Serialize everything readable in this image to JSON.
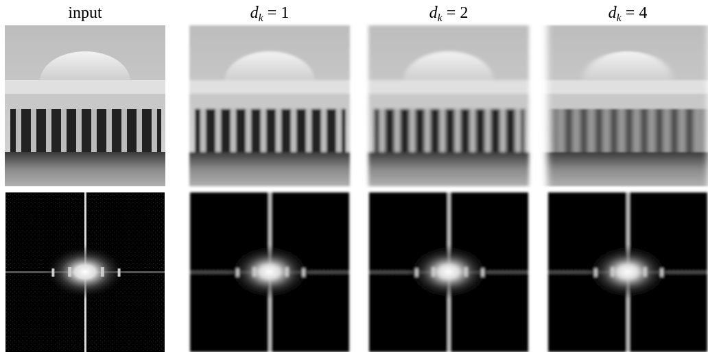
{
  "figure": {
    "columns": [
      {
        "label": "input"
      },
      {
        "symbol": "d",
        "subscript": "k",
        "rest": "= 1"
      },
      {
        "symbol": "d",
        "subscript": "k",
        "rest": "= 2"
      },
      {
        "symbol": "d",
        "subscript": "k",
        "rest": "= 4"
      }
    ]
  }
}
